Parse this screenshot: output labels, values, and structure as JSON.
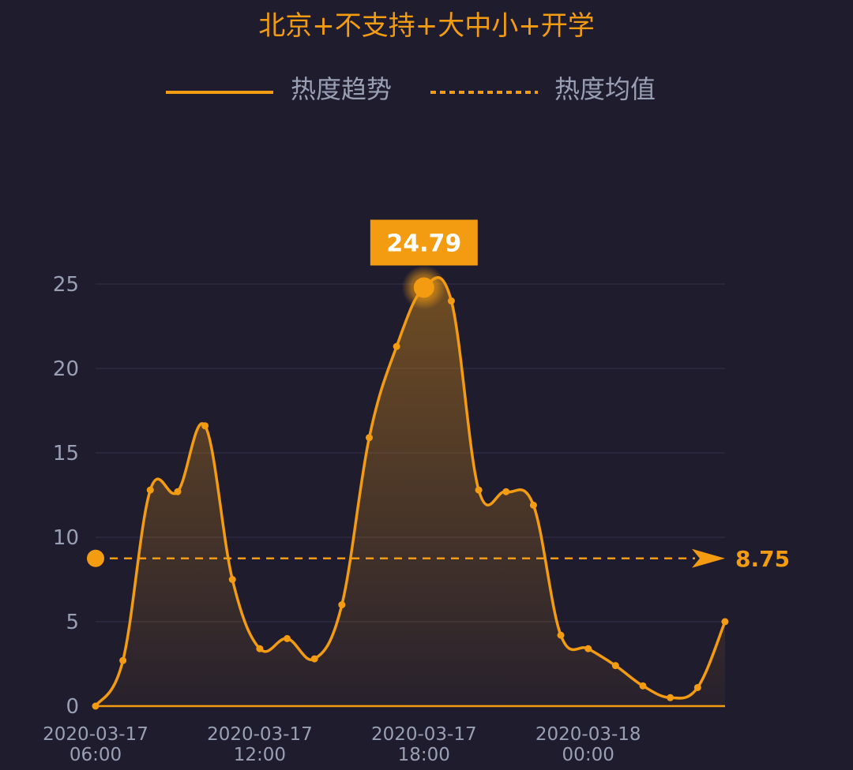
{
  "chart_data": {
    "type": "area",
    "title": "北京+不支持+大中小+开学",
    "legend": {
      "placement": "top-center",
      "items": [
        "热度趋势",
        "热度均值"
      ]
    },
    "x": [
      "2020-03-17 06:00",
      "2020-03-17 07:00",
      "2020-03-17 08:00",
      "2020-03-17 09:00",
      "2020-03-17 10:00",
      "2020-03-17 11:00",
      "2020-03-17 12:00",
      "2020-03-17 13:00",
      "2020-03-17 14:00",
      "2020-03-17 15:00",
      "2020-03-17 16:00",
      "2020-03-17 17:00",
      "2020-03-17 18:00",
      "2020-03-17 19:00",
      "2020-03-17 20:00",
      "2020-03-17 21:00",
      "2020-03-17 22:00",
      "2020-03-17 23:00",
      "2020-03-18 00:00",
      "2020-03-18 01:00",
      "2020-03-18 02:00",
      "2020-03-18 03:00",
      "2020-03-18 04:00",
      "2020-03-18 05:00"
    ],
    "series": [
      {
        "name": "热度趋势",
        "values": [
          0,
          2.7,
          12.8,
          12.7,
          16.6,
          7.5,
          3.4,
          4.0,
          2.8,
          6.0,
          15.9,
          21.3,
          24.79,
          24.0,
          12.8,
          12.7,
          11.9,
          4.2,
          3.4,
          2.4,
          1.2,
          0.5,
          1.1,
          5.0
        ]
      }
    ],
    "mean": {
      "name": "热度均值",
      "value": 8.75,
      "label": "8.75"
    },
    "peak": {
      "label": "24.79",
      "value": 24.79,
      "x": "2020-03-17 18:00"
    },
    "yticks": [
      0,
      5,
      10,
      15,
      20,
      25
    ],
    "ylim": [
      0,
      25
    ],
    "xticks": [
      {
        "x": "2020-03-17 06:00",
        "line1": "2020-03-17",
        "line2": "06:00"
      },
      {
        "x": "2020-03-17 12:00",
        "line1": "2020-03-17",
        "line2": "12:00"
      },
      {
        "x": "2020-03-17 18:00",
        "line1": "2020-03-17",
        "line2": "18:00"
      },
      {
        "x": "2020-03-18 00:00",
        "line1": "2020-03-18",
        "line2": "00:00"
      }
    ],
    "grid": true,
    "colors": {
      "background": "#1f1c2e",
      "line": "#f39c12",
      "grid": "#2e2b40",
      "axis": "#f39c12",
      "tick_text": "#9aa0b4",
      "peak_box": "#f39c12"
    }
  }
}
